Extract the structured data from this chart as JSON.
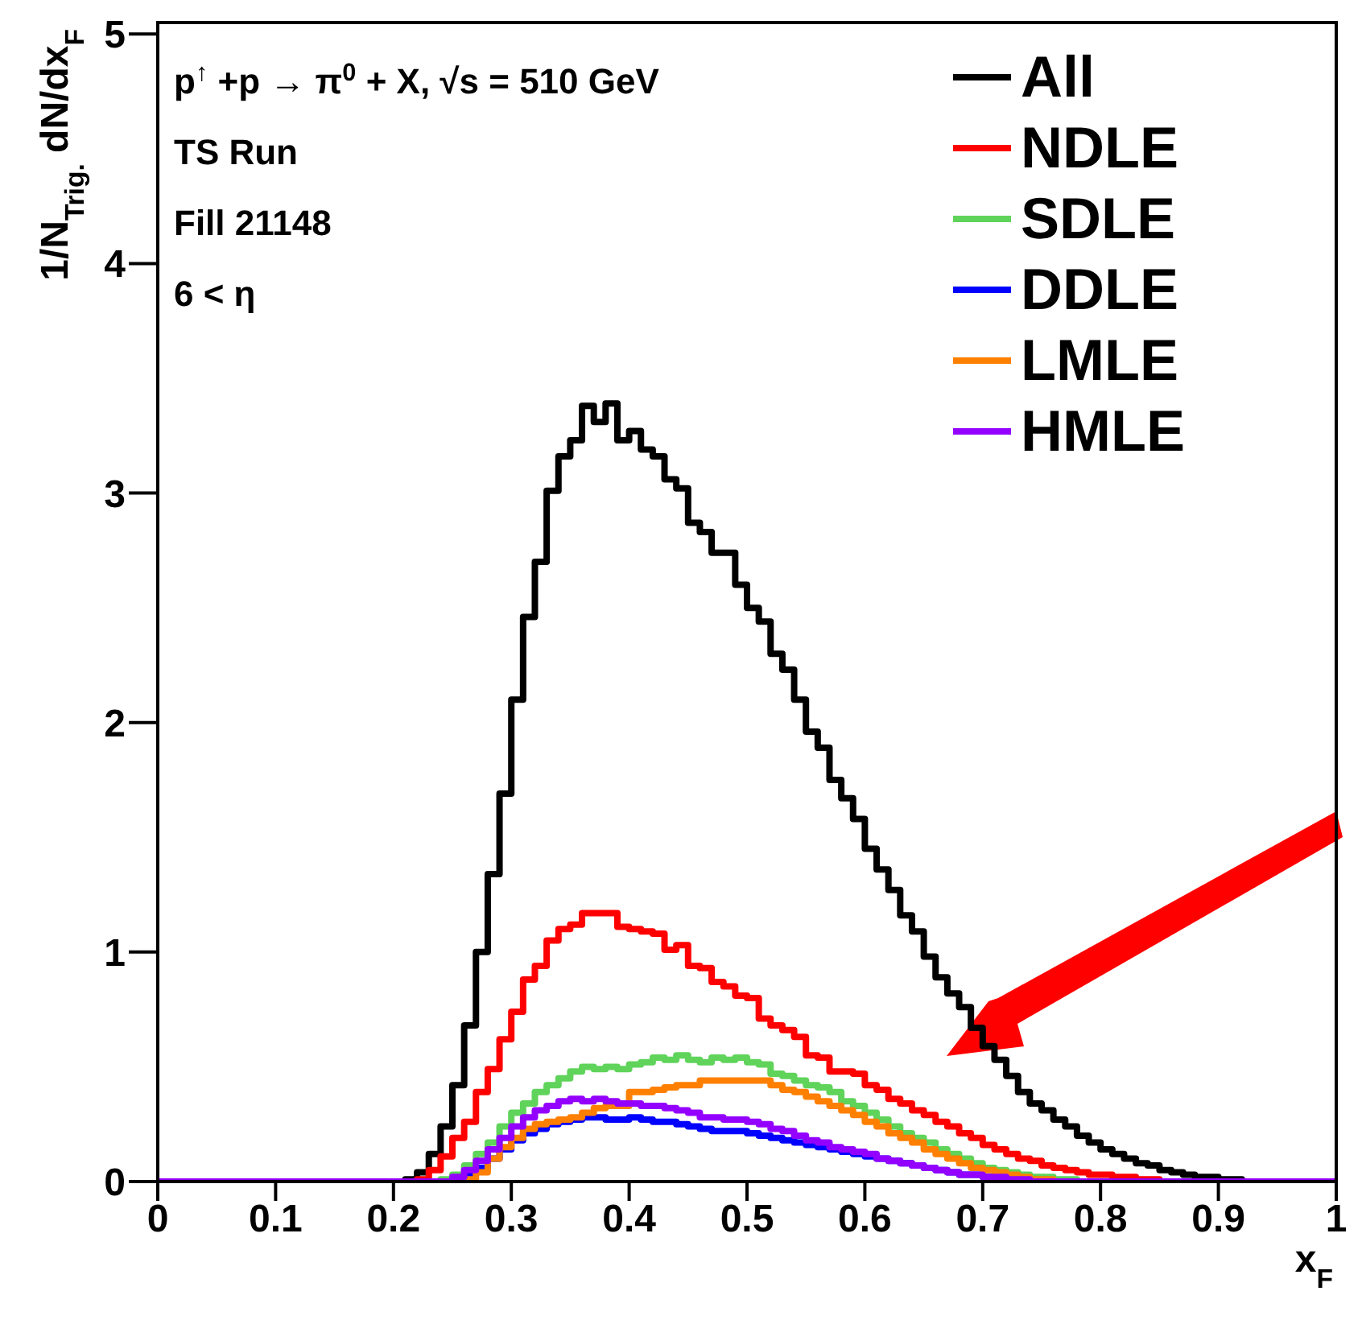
{
  "chart_data": {
    "type": "histogram",
    "xlabel": "x$_{F}$",
    "ylabel": "1/N$_{Trig.}$ dN/dx$_{F}$",
    "annotations": [
      "p$^{↑}$+p → π$^{0}$ + X,  √s = 510 GeV",
      "TS Run",
      "Fill 21148",
      "6 < η"
    ],
    "bins": [
      0,
      0.01,
      0.02,
      0.03,
      0.04,
      0.05,
      0.06,
      0.07,
      0.08,
      0.09,
      0.1,
      0.11,
      0.12,
      0.13,
      0.14,
      0.15,
      0.16,
      0.17,
      0.18,
      0.19,
      0.2,
      0.21,
      0.22,
      0.23,
      0.24,
      0.25,
      0.26,
      0.27,
      0.28,
      0.29,
      0.3,
      0.31,
      0.32,
      0.33,
      0.34,
      0.35,
      0.36,
      0.37,
      0.38,
      0.39,
      0.4,
      0.41,
      0.42,
      0.43,
      0.44,
      0.45,
      0.46,
      0.47,
      0.48,
      0.49,
      0.5,
      0.51,
      0.52,
      0.53,
      0.54,
      0.55,
      0.56,
      0.57,
      0.58,
      0.59,
      0.6,
      0.61,
      0.62,
      0.63,
      0.64,
      0.65,
      0.66,
      0.67,
      0.68,
      0.69,
      0.7,
      0.71,
      0.72,
      0.73,
      0.74,
      0.75,
      0.76,
      0.77,
      0.78,
      0.79,
      0.8,
      0.81,
      0.82,
      0.83,
      0.84,
      0.85,
      0.86,
      0.87,
      0.88,
      0.89,
      0.9,
      0.91,
      0.92,
      0.93,
      0.94,
      0.95,
      0.96,
      0.97,
      0.98,
      0.99,
      1
    ],
    "series": [
      {
        "name": "All",
        "color": "#000000",
        "values": [
          0,
          0,
          0,
          0,
          0,
          0,
          0,
          0,
          0,
          0,
          0,
          0,
          0,
          0,
          0,
          0,
          0,
          0,
          0,
          0,
          0,
          0.01,
          0.04,
          0.12,
          0.24,
          0.42,
          0.68,
          1.0,
          1.34,
          1.69,
          2.1,
          2.46,
          2.7,
          3.01,
          3.16,
          3.23,
          3.38,
          3.31,
          3.39,
          3.23,
          3.27,
          3.19,
          3.16,
          3.06,
          3.02,
          2.87,
          2.83,
          2.74,
          2.74,
          2.6,
          2.5,
          2.44,
          2.3,
          2.23,
          2.1,
          1.96,
          1.89,
          1.75,
          1.67,
          1.58,
          1.45,
          1.36,
          1.27,
          1.16,
          1.09,
          0.98,
          0.89,
          0.82,
          0.76,
          0.67,
          0.59,
          0.53,
          0.46,
          0.39,
          0.34,
          0.31,
          0.27,
          0.24,
          0.2,
          0.17,
          0.14,
          0.12,
          0.1,
          0.08,
          0.07,
          0.05,
          0.04,
          0.03,
          0.02,
          0.02,
          0.01,
          0.01,
          0,
          0,
          0,
          0,
          0,
          0,
          0,
          0
        ]
      },
      {
        "name": "NDLE",
        "color": "#ff0000",
        "values": [
          0,
          0,
          0,
          0,
          0,
          0,
          0,
          0,
          0,
          0,
          0,
          0,
          0,
          0,
          0,
          0,
          0,
          0,
          0,
          0,
          0,
          0,
          0.01,
          0.05,
          0.11,
          0.19,
          0.26,
          0.39,
          0.49,
          0.62,
          0.74,
          0.88,
          0.94,
          1.05,
          1.1,
          1.12,
          1.17,
          1.17,
          1.17,
          1.11,
          1.1,
          1.09,
          1.08,
          1.01,
          1.03,
          0.94,
          0.93,
          0.87,
          0.85,
          0.81,
          0.8,
          0.71,
          0.68,
          0.66,
          0.63,
          0.55,
          0.54,
          0.48,
          0.48,
          0.47,
          0.42,
          0.4,
          0.36,
          0.34,
          0.31,
          0.29,
          0.26,
          0.24,
          0.21,
          0.19,
          0.16,
          0.14,
          0.12,
          0.1,
          0.09,
          0.07,
          0.06,
          0.05,
          0.04,
          0.03,
          0.03,
          0.02,
          0.02,
          0.01,
          0.01,
          0,
          0,
          0,
          0,
          0,
          0,
          0,
          0,
          0,
          0,
          0,
          0,
          0,
          0,
          0
        ]
      },
      {
        "name": "SDLE",
        "color": "#5fd35a",
        "values": [
          0,
          0,
          0,
          0,
          0,
          0,
          0,
          0,
          0,
          0,
          0,
          0,
          0,
          0,
          0,
          0,
          0,
          0,
          0,
          0,
          0,
          0,
          0,
          0,
          0.01,
          0.03,
          0.07,
          0.12,
          0.17,
          0.24,
          0.3,
          0.34,
          0.39,
          0.42,
          0.45,
          0.48,
          0.5,
          0.49,
          0.5,
          0.49,
          0.51,
          0.52,
          0.54,
          0.53,
          0.55,
          0.53,
          0.52,
          0.54,
          0.53,
          0.54,
          0.52,
          0.51,
          0.47,
          0.46,
          0.44,
          0.42,
          0.41,
          0.39,
          0.35,
          0.33,
          0.3,
          0.27,
          0.24,
          0.21,
          0.19,
          0.17,
          0.14,
          0.12,
          0.1,
          0.08,
          0.06,
          0.05,
          0.04,
          0.03,
          0.02,
          0.02,
          0.01,
          0.01,
          0,
          0,
          0,
          0,
          0,
          0,
          0,
          0,
          0,
          0,
          0,
          0,
          0,
          0,
          0,
          0,
          0,
          0,
          0,
          0,
          0,
          0
        ]
      },
      {
        "name": "DDLE",
        "color": "#0000ff",
        "values": [
          0,
          0,
          0,
          0,
          0,
          0,
          0,
          0,
          0,
          0,
          0,
          0,
          0,
          0,
          0,
          0,
          0,
          0,
          0,
          0,
          0,
          0,
          0,
          0,
          0,
          0.01,
          0.03,
          0.06,
          0.1,
          0.14,
          0.18,
          0.21,
          0.23,
          0.25,
          0.26,
          0.27,
          0.28,
          0.28,
          0.27,
          0.27,
          0.28,
          0.27,
          0.26,
          0.26,
          0.25,
          0.24,
          0.23,
          0.22,
          0.22,
          0.22,
          0.21,
          0.2,
          0.19,
          0.18,
          0.17,
          0.16,
          0.15,
          0.14,
          0.13,
          0.12,
          0.11,
          0.1,
          0.09,
          0.08,
          0.07,
          0.06,
          0.05,
          0.04,
          0.03,
          0.03,
          0.02,
          0.02,
          0.01,
          0.01,
          0,
          0,
          0,
          0,
          0,
          0,
          0,
          0,
          0,
          0,
          0,
          0,
          0,
          0,
          0,
          0,
          0,
          0,
          0,
          0,
          0,
          0,
          0,
          0,
          0,
          0
        ]
      },
      {
        "name": "LMLE",
        "color": "#ff7f00",
        "values": [
          0,
          0,
          0,
          0,
          0,
          0,
          0,
          0,
          0,
          0,
          0,
          0,
          0,
          0,
          0,
          0,
          0,
          0,
          0,
          0,
          0,
          0,
          0,
          0,
          0,
          0,
          0.01,
          0.04,
          0.1,
          0.15,
          0.19,
          0.23,
          0.25,
          0.26,
          0.27,
          0.28,
          0.3,
          0.32,
          0.33,
          0.33,
          0.39,
          0.39,
          0.4,
          0.41,
          0.42,
          0.42,
          0.44,
          0.44,
          0.44,
          0.44,
          0.44,
          0.44,
          0.42,
          0.4,
          0.39,
          0.37,
          0.35,
          0.33,
          0.31,
          0.29,
          0.26,
          0.24,
          0.21,
          0.19,
          0.17,
          0.14,
          0.12,
          0.1,
          0.08,
          0.06,
          0.05,
          0.04,
          0.03,
          0.02,
          0.01,
          0.01,
          0,
          0,
          0,
          0,
          0,
          0,
          0,
          0,
          0,
          0,
          0,
          0,
          0,
          0,
          0,
          0,
          0,
          0,
          0,
          0,
          0,
          0,
          0,
          0
        ]
      },
      {
        "name": "HMLE",
        "color": "#9400ff",
        "values": [
          0,
          0,
          0,
          0,
          0,
          0,
          0,
          0,
          0,
          0,
          0,
          0,
          0,
          0,
          0,
          0,
          0,
          0,
          0,
          0,
          0,
          0,
          0,
          0,
          0,
          0.02,
          0.05,
          0.09,
          0.14,
          0.19,
          0.24,
          0.28,
          0.31,
          0.33,
          0.35,
          0.36,
          0.35,
          0.36,
          0.35,
          0.34,
          0.34,
          0.33,
          0.33,
          0.32,
          0.31,
          0.3,
          0.28,
          0.28,
          0.27,
          0.27,
          0.26,
          0.25,
          0.23,
          0.22,
          0.2,
          0.18,
          0.17,
          0.15,
          0.14,
          0.13,
          0.12,
          0.1,
          0.09,
          0.08,
          0.07,
          0.06,
          0.05,
          0.04,
          0.03,
          0.03,
          0.02,
          0.02,
          0.01,
          0.01,
          0,
          0,
          0,
          0,
          0,
          0,
          0,
          0,
          0,
          0,
          0,
          0,
          0,
          0,
          0,
          0,
          0,
          0,
          0,
          0,
          0,
          0,
          0,
          0,
          0,
          0
        ]
      }
    ],
    "xlim": [
      0,
      1
    ],
    "xticks": [
      0,
      0.1,
      0.2,
      0.3,
      0.4,
      0.5,
      0.6,
      0.7,
      0.8,
      0.9,
      1
    ],
    "ylim": [
      0,
      5.05
    ],
    "yticks": [
      0,
      1,
      2,
      3,
      4,
      5
    ],
    "grid": false,
    "legend": "top right"
  }
}
